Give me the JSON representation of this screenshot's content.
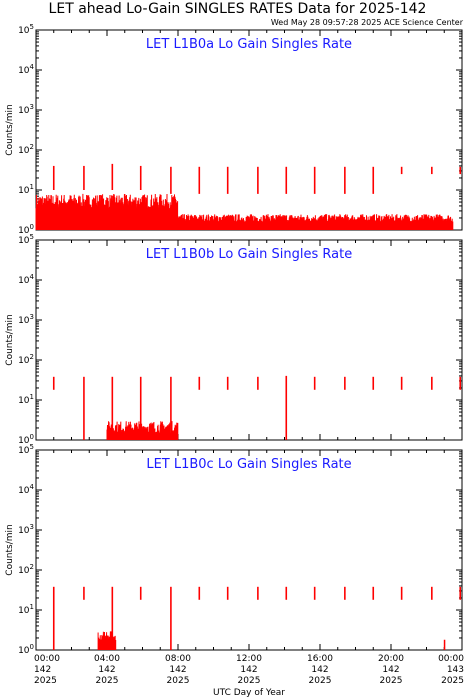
{
  "title": "LET ahead Lo-Gain SINGLES RATES Data for 2025-142",
  "timestamp": "Wed May 28 09:57:28 2025 ACE Science Center",
  "colors": {
    "data": "#ff0000",
    "panel_title": "#1a1aff",
    "axes": "#000000"
  },
  "chart_data": [
    {
      "type": "line",
      "title": "LET L1B0a Lo Gain Singles Rate",
      "ylabel": "Counts/min",
      "yscale": "log",
      "ylim": [
        1,
        100000
      ],
      "ytick_labels": [
        "10^0",
        "10^1",
        "10^2",
        "10^3",
        "10^4",
        "10^5"
      ],
      "spikes": [
        {
          "x": 1.0,
          "ymin": 10,
          "ymax": 40
        },
        {
          "x": 2.7,
          "ymin": 10,
          "ymax": 40
        },
        {
          "x": 4.3,
          "ymin": 10,
          "ymax": 45
        },
        {
          "x": 5.9,
          "ymin": 10,
          "ymax": 40
        },
        {
          "x": 7.6,
          "ymin": 8,
          "ymax": 38
        },
        {
          "x": 9.2,
          "ymin": 8,
          "ymax": 38
        },
        {
          "x": 10.8,
          "ymin": 8,
          "ymax": 38
        },
        {
          "x": 12.5,
          "ymin": 8,
          "ymax": 38
        },
        {
          "x": 14.1,
          "ymin": 8,
          "ymax": 38
        },
        {
          "x": 15.7,
          "ymin": 8,
          "ymax": 38
        },
        {
          "x": 17.4,
          "ymin": 8,
          "ymax": 38
        },
        {
          "x": 19.0,
          "ymin": 8,
          "ymax": 38
        },
        {
          "x": 20.6,
          "ymin": 25,
          "ymax": 38
        },
        {
          "x": 22.3,
          "ymin": 25,
          "ymax": 38
        },
        {
          "x": 23.9,
          "ymin": 25,
          "ymax": 38
        }
      ],
      "background": [
        {
          "x": [
            0.0,
            8.0
          ],
          "level": 3.5,
          "max": 8
        },
        {
          "x": [
            8.0,
            23.5
          ],
          "level": 1.6,
          "max": 2.5
        }
      ]
    },
    {
      "type": "line",
      "title": "LET L1B0b Lo Gain Singles Rate",
      "ylabel": "Counts/min",
      "yscale": "log",
      "ylim": [
        1,
        100000
      ],
      "ytick_labels": [
        "10^0",
        "10^1",
        "10^2",
        "10^3",
        "10^4",
        "10^5"
      ],
      "spikes": [
        {
          "x": 1.0,
          "ymin": 18,
          "ymax": 38
        },
        {
          "x": 2.7,
          "ymin": 1,
          "ymax": 38
        },
        {
          "x": 4.3,
          "ymin": 1,
          "ymax": 38
        },
        {
          "x": 5.9,
          "ymin": 1,
          "ymax": 38
        },
        {
          "x": 7.6,
          "ymin": 1,
          "ymax": 38
        },
        {
          "x": 9.2,
          "ymin": 18,
          "ymax": 38
        },
        {
          "x": 10.8,
          "ymin": 18,
          "ymax": 38
        },
        {
          "x": 12.5,
          "ymin": 18,
          "ymax": 38
        },
        {
          "x": 14.1,
          "ymin": 1,
          "ymax": 40
        },
        {
          "x": 15.7,
          "ymin": 18,
          "ymax": 38
        },
        {
          "x": 17.4,
          "ymin": 18,
          "ymax": 38
        },
        {
          "x": 19.0,
          "ymin": 18,
          "ymax": 38
        },
        {
          "x": 20.6,
          "ymin": 18,
          "ymax": 38
        },
        {
          "x": 22.3,
          "ymin": 18,
          "ymax": 38
        },
        {
          "x": 23.9,
          "ymin": 18,
          "ymax": 38
        }
      ],
      "background": [
        {
          "x": [
            4.0,
            8.0
          ],
          "level": 1.5,
          "max": 3
        }
      ]
    },
    {
      "type": "line",
      "title": "LET L1B0c Lo Gain Singles Rate",
      "ylabel": "Counts/min",
      "yscale": "log",
      "ylim": [
        1,
        100000
      ],
      "ytick_labels": [
        "10^0",
        "10^1",
        "10^2",
        "10^3",
        "10^4",
        "10^5"
      ],
      "xlabel": "UTC Day of Year",
      "xlim": [
        0,
        24
      ],
      "xticks": [
        {
          "time": "00:00",
          "doy": "142",
          "year": "2025"
        },
        {
          "time": "04:00",
          "doy": "142",
          "year": "2025"
        },
        {
          "time": "08:00",
          "doy": "142",
          "year": "2025"
        },
        {
          "time": "12:00",
          "doy": "142",
          "year": "2025"
        },
        {
          "time": "16:00",
          "doy": "142",
          "year": "2025"
        },
        {
          "time": "20:00",
          "doy": "142",
          "year": "2025"
        },
        {
          "time": "00:00",
          "doy": "143",
          "year": "2025"
        }
      ],
      "spikes": [
        {
          "x": 1.0,
          "ymin": 1,
          "ymax": 38
        },
        {
          "x": 2.7,
          "ymin": 18,
          "ymax": 38
        },
        {
          "x": 4.3,
          "ymin": 1,
          "ymax": 38
        },
        {
          "x": 5.9,
          "ymin": 18,
          "ymax": 38
        },
        {
          "x": 7.6,
          "ymin": 1,
          "ymax": 38
        },
        {
          "x": 9.2,
          "ymin": 18,
          "ymax": 38
        },
        {
          "x": 10.8,
          "ymin": 18,
          "ymax": 38
        },
        {
          "x": 12.5,
          "ymin": 18,
          "ymax": 38
        },
        {
          "x": 14.1,
          "ymin": 18,
          "ymax": 38
        },
        {
          "x": 15.7,
          "ymin": 18,
          "ymax": 38
        },
        {
          "x": 17.4,
          "ymin": 18,
          "ymax": 38
        },
        {
          "x": 19.0,
          "ymin": 18,
          "ymax": 38
        },
        {
          "x": 20.6,
          "ymin": 18,
          "ymax": 38
        },
        {
          "x": 22.3,
          "ymin": 18,
          "ymax": 38
        },
        {
          "x": 23.9,
          "ymin": 18,
          "ymax": 38
        }
      ],
      "background": [
        {
          "x": [
            3.5,
            4.5
          ],
          "level": 1.5,
          "max": 3
        },
        {
          "x": 23.0,
          "level": 1.8,
          "max": 1.8
        }
      ]
    }
  ]
}
